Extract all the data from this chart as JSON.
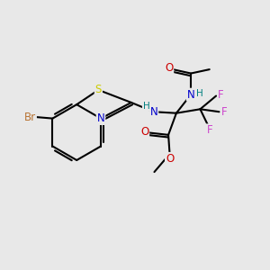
{
  "background_color": "#e8e8e8",
  "bond_color": "#000000",
  "bond_width": 1.5,
  "atoms": {
    "Br": {
      "color": "#b87333",
      "fontsize": 8.5
    },
    "S": {
      "color": "#cccc00",
      "fontsize": 8.5
    },
    "N": {
      "color": "#0000cc",
      "fontsize": 8.5
    },
    "O": {
      "color": "#cc0000",
      "fontsize": 8.5
    },
    "F": {
      "color": "#cc44cc",
      "fontsize": 8.5
    },
    "H": {
      "color": "#008080",
      "fontsize": 7.5
    }
  },
  "figsize": [
    3.0,
    3.0
  ],
  "dpi": 100
}
